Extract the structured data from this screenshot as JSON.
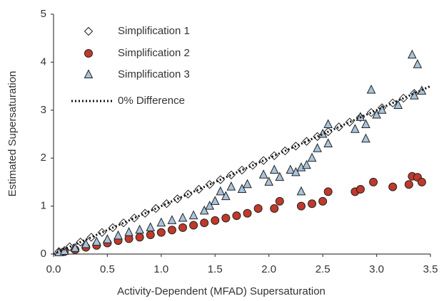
{
  "chart_data": {
    "type": "scatter",
    "xlabel": "Activity-Dependent (MFAD) Supersaturation",
    "ylabel": "Estimated Supersaturation",
    "xlim": [
      0,
      3.5
    ],
    "ylim": [
      0,
      5
    ],
    "xticks": [
      {
        "value": 0,
        "label": "0.0"
      },
      0.5,
      {
        "value": 1,
        "label": "1.0"
      },
      1.5,
      {
        "value": 2,
        "label": "2.0"
      },
      2.5,
      {
        "value": 3,
        "label": "3.0"
      },
      3.5
    ],
    "yticks": [
      0,
      1,
      2,
      3,
      4,
      5
    ],
    "grid": false,
    "legend": "upper left",
    "series": [
      {
        "name": "Simplification 1",
        "marker": "diamond",
        "color": "#ffffff",
        "x": [
          0.05,
          0.15,
          0.25,
          0.35,
          0.45,
          0.55,
          0.65,
          0.75,
          0.85,
          0.95,
          1.05,
          1.15,
          1.25,
          1.35,
          1.45,
          1.55,
          1.65,
          1.75,
          1.85,
          1.95,
          2.05,
          2.15,
          2.25,
          2.35,
          2.45,
          2.55,
          2.65,
          2.75,
          2.85,
          2.95,
          3.05,
          3.15,
          3.25,
          3.35
        ],
        "values": [
          0.05,
          0.15,
          0.25,
          0.35,
          0.45,
          0.55,
          0.65,
          0.75,
          0.85,
          0.95,
          1.05,
          1.15,
          1.25,
          1.35,
          1.45,
          1.55,
          1.65,
          1.75,
          1.85,
          1.95,
          2.05,
          2.15,
          2.25,
          2.35,
          2.45,
          2.55,
          2.65,
          2.75,
          2.85,
          2.95,
          3.05,
          3.15,
          3.25,
          3.35
        ]
      },
      {
        "name": "Simplification 2",
        "marker": "circle",
        "color": "#c0392b",
        "x": [
          0.1,
          0.2,
          0.3,
          0.4,
          0.5,
          0.6,
          0.7,
          0.8,
          0.9,
          1.0,
          1.1,
          1.2,
          1.3,
          1.4,
          1.5,
          1.6,
          1.7,
          1.8,
          1.9,
          2.05,
          2.1,
          2.3,
          2.4,
          2.5,
          2.55,
          2.8,
          2.85,
          2.97,
          3.15,
          3.3,
          3.33,
          3.38,
          3.42
        ],
        "values": [
          0.05,
          0.09,
          0.14,
          0.18,
          0.23,
          0.28,
          0.32,
          0.35,
          0.4,
          0.45,
          0.5,
          0.55,
          0.6,
          0.65,
          0.7,
          0.75,
          0.8,
          0.85,
          0.95,
          0.95,
          1.1,
          1.0,
          1.05,
          1.1,
          1.3,
          1.3,
          1.35,
          1.5,
          1.4,
          1.45,
          1.62,
          1.6,
          1.5
        ]
      },
      {
        "name": "Simplification 3",
        "marker": "triangle",
        "color": "#a9c4dc",
        "x": [
          0.05,
          0.1,
          0.2,
          0.3,
          0.4,
          0.5,
          0.6,
          0.7,
          0.8,
          0.9,
          1.0,
          1.1,
          1.2,
          1.3,
          1.4,
          1.45,
          1.5,
          1.55,
          1.6,
          1.65,
          1.75,
          1.8,
          1.95,
          2.0,
          2.05,
          2.1,
          2.2,
          2.25,
          2.3,
          2.3,
          2.35,
          2.4,
          2.45,
          2.5,
          2.55,
          2.55,
          2.8,
          2.85,
          2.9,
          2.9,
          2.95,
          3.0,
          3.05,
          3.2,
          3.33,
          3.35,
          3.38,
          3.42
        ],
        "values": [
          0.03,
          0.06,
          0.12,
          0.2,
          0.25,
          0.3,
          0.38,
          0.45,
          0.5,
          0.55,
          0.65,
          0.7,
          0.75,
          0.8,
          0.9,
          1.0,
          1.1,
          1.3,
          1.2,
          1.4,
          1.35,
          1.45,
          1.65,
          1.5,
          1.75,
          1.6,
          1.75,
          1.7,
          1.8,
          1.3,
          1.85,
          2.0,
          2.2,
          2.5,
          2.3,
          2.7,
          2.6,
          2.85,
          2.7,
          2.4,
          3.42,
          2.9,
          3.0,
          3.1,
          4.15,
          3.3,
          3.95,
          3.4
        ]
      },
      {
        "name": "0% Difference",
        "marker": "dotted-line",
        "color": "#111111",
        "x": [
          0,
          3.5
        ],
        "values": [
          0,
          3.5
        ]
      }
    ]
  }
}
